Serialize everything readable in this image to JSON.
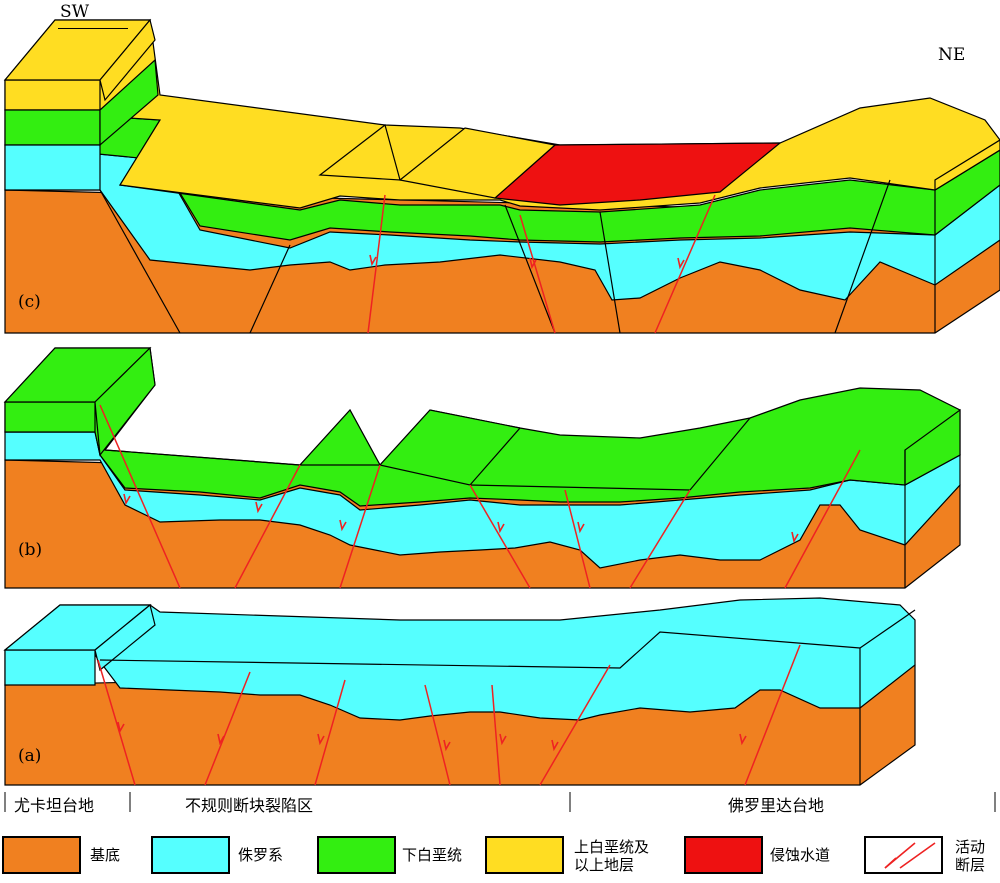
{
  "orientation": {
    "left": "SW",
    "right": "NE"
  },
  "panels": [
    {
      "id": "c",
      "label": "(c)"
    },
    {
      "id": "b",
      "label": "(b)"
    },
    {
      "id": "a",
      "label": "(a)"
    }
  ],
  "regions": [
    "尤卡坦台地",
    "不规则断块裂陷区",
    "佛罗里达台地"
  ],
  "legend": [
    {
      "key": "basement",
      "label": "基底",
      "color": "#F08020"
    },
    {
      "key": "jurassic",
      "label": "侏罗系",
      "color": "#55FFFF"
    },
    {
      "key": "lower_cretaceous",
      "label": "下白垩统",
      "color": "#33EE11"
    },
    {
      "key": "upper_cretaceous",
      "label": "上白垩统及\n以上地层",
      "color": "#FFDD22"
    },
    {
      "key": "erosion_channel",
      "label": "侵蚀水道",
      "color": "#EE1111"
    },
    {
      "key": "active_fault",
      "label": "活动\n断层",
      "color": "#EE2222"
    }
  ],
  "colors": {
    "basement": "#F08020",
    "jurassic": "#55FFFF",
    "lower_cretaceous": "#33EE11",
    "upper_cretaceous": "#FFDD22",
    "erosion_channel": "#EE1111",
    "fault": "#EE2222",
    "outline": "#000000"
  }
}
